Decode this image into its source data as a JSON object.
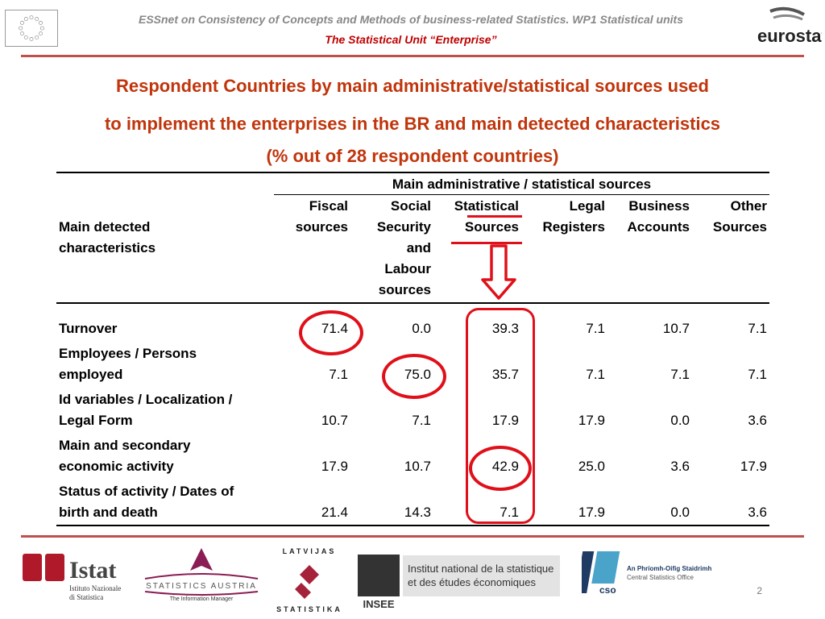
{
  "header": {
    "line1": "ESSnet on Consistency of Concepts and Methods of business-related Statistics. WP1 Statistical units",
    "line2": "The Statistical Unit “Enterprise”",
    "logo_right": "eurostat"
  },
  "title": {
    "line1": "Respondent Countries by main administrative/statistical sources used",
    "line2": "to implement the enterprises in the BR and main detected characteristics",
    "line3": "(% out of 28 respondent countries)"
  },
  "table": {
    "group_header": "Main administrative / statistical sources",
    "row_header": [
      "Main detected",
      "characteristics"
    ],
    "columns": [
      {
        "lines": [
          "Fiscal",
          "sources"
        ]
      },
      {
        "lines": [
          "Social",
          "Security",
          "and",
          "Labour",
          "sources"
        ]
      },
      {
        "lines": [
          "Statistical",
          "Sources"
        ]
      },
      {
        "lines": [
          "Legal",
          "Registers"
        ]
      },
      {
        "lines": [
          "Business",
          "Accounts"
        ]
      },
      {
        "lines": [
          "Other",
          "Sources"
        ]
      }
    ],
    "rows": [
      {
        "label": [
          "Turnover"
        ],
        "values": [
          "71.4",
          "0.0",
          "39.3",
          "7.1",
          "10.7",
          "7.1"
        ]
      },
      {
        "label": [
          "Employees / Persons",
          "employed"
        ],
        "values": [
          "7.1",
          "75.0",
          "35.7",
          "7.1",
          "7.1",
          "7.1"
        ]
      },
      {
        "label": [
          "Id variables / Localization /",
          "Legal Form"
        ],
        "values": [
          "10.7",
          "7.1",
          "17.9",
          "17.9",
          "0.0",
          "3.6"
        ]
      },
      {
        "label": [
          "Main and secondary",
          "economic activity"
        ],
        "values": [
          "17.9",
          "10.7",
          "42.9",
          "25.0",
          "3.6",
          "17.9"
        ]
      },
      {
        "label": [
          "Status of activity / Dates of",
          "birth and death"
        ],
        "values": [
          "21.4",
          "14.3",
          "7.1",
          "17.9",
          "0.0",
          "3.6"
        ]
      }
    ]
  },
  "footer": {
    "istat": {
      "name": "Istat",
      "sub1": "Istituto Nazionale",
      "sub2": "di Statistica"
    },
    "austria": {
      "name": "STATISTICS AUSTRIA",
      "tagline": "The Information Manager"
    },
    "latvia": {
      "top": "LATVIJAS",
      "bottom": "STATISTIKA"
    },
    "insee": {
      "name": "INSEE",
      "text1": "Institut national de la statistique",
      "text2": "et des études économiques"
    },
    "cso": {
      "line1": "An Phríomh-Oifig Staidrimh",
      "line2": "Central Statistics Office",
      "mark": "cso"
    },
    "page_number": "2"
  },
  "colors": {
    "accent_red": "#e0101a",
    "title_red": "#c0350c",
    "header_red": "#c00000",
    "rule_red": "#c0504d"
  }
}
